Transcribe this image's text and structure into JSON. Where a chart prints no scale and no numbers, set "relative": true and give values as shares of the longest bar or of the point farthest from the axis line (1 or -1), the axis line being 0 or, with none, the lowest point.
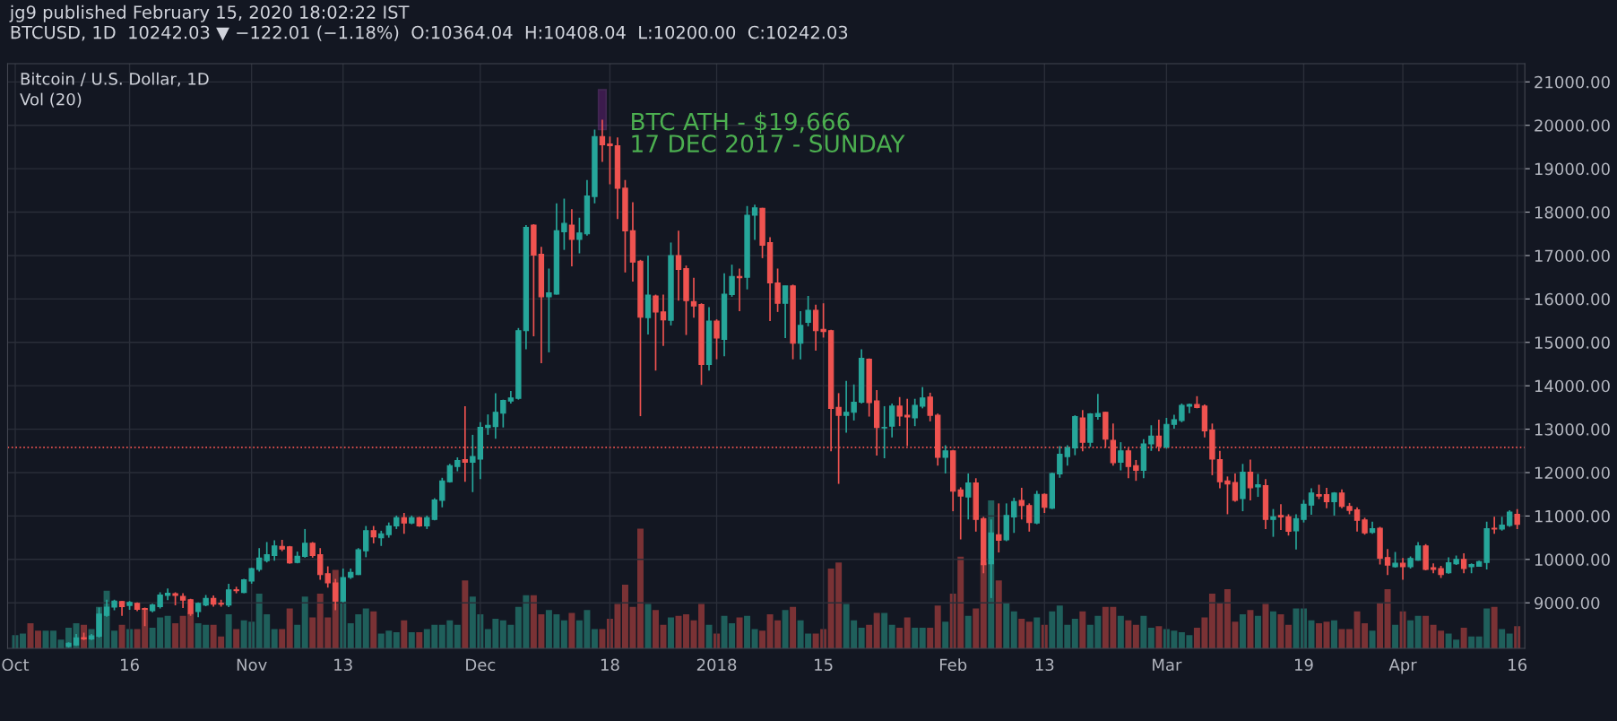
{
  "chart_data": [
    {
      "type": "candlestick",
      "title": "jg9 published February 15, 2020 18:02:22 IST",
      "subtitle": "BTCUSD, 1D  10242.03 ▼ −122.01 (−1.18%)  O:10364.04  H:10408.04  L:10200.00  C:10242.03",
      "annotations": [
        "Bitcoin / U.S. Dollar, 1D",
        "Vol (20)",
        {
          "text": "BTC ATH - $19,666\n17 DEC 2017 - SUNDAY",
          "x": "2017-12-17",
          "y": 20130
        }
      ],
      "x": [
        "2017-10-08",
        "2017-10-09",
        "2017-10-10",
        "2017-10-11",
        "2017-10-12",
        "2017-10-13",
        "2017-10-14",
        "2017-10-15",
        "2017-10-16",
        "2017-10-17",
        "2017-10-18",
        "2017-10-19",
        "2017-10-20",
        "2017-10-21",
        "2017-10-22",
        "2017-10-23",
        "2017-10-24",
        "2017-10-25",
        "2017-10-26",
        "2017-10-27",
        "2017-10-28",
        "2017-10-29",
        "2017-10-30",
        "2017-10-31",
        "2017-11-01",
        "2017-11-02",
        "2017-11-03",
        "2017-11-04",
        "2017-11-05",
        "2017-11-06",
        "2017-11-07",
        "2017-11-08",
        "2017-11-09",
        "2017-11-10",
        "2017-11-11",
        "2017-11-12",
        "2017-11-13",
        "2017-11-14",
        "2017-11-15",
        "2017-11-16",
        "2017-11-17",
        "2017-11-18",
        "2017-11-19",
        "2017-11-20",
        "2017-11-21",
        "2017-11-22",
        "2017-11-23",
        "2017-11-24",
        "2017-11-25",
        "2017-11-26",
        "2017-11-27",
        "2017-11-28",
        "2017-11-29",
        "2017-11-30",
        "2017-12-01",
        "2017-12-02",
        "2017-12-03",
        "2017-12-04",
        "2017-12-05",
        "2017-12-06",
        "2017-12-07",
        "2017-12-08",
        "2017-12-09",
        "2017-12-10",
        "2017-12-11",
        "2017-12-12",
        "2017-12-13",
        "2017-12-14",
        "2017-12-15",
        "2017-12-16",
        "2017-12-17",
        "2017-12-18",
        "2017-12-19",
        "2017-12-20",
        "2017-12-21",
        "2017-12-22",
        "2017-12-23",
        "2017-12-24",
        "2017-12-25",
        "2017-12-26",
        "2017-12-27",
        "2017-12-28",
        "2017-12-29",
        "2017-12-30",
        "2017-12-31",
        "2018-01-01",
        "2018-01-02",
        "2018-01-03",
        "2018-01-04",
        "2018-01-05",
        "2018-01-06",
        "2018-01-07",
        "2018-01-08",
        "2018-01-09",
        "2018-01-10",
        "2018-01-11",
        "2018-01-12",
        "2018-01-13",
        "2018-01-14",
        "2018-01-15",
        "2018-01-16",
        "2018-01-17",
        "2018-01-18",
        "2018-01-19",
        "2018-01-20",
        "2018-01-21",
        "2018-01-22",
        "2018-01-23",
        "2018-01-24",
        "2018-01-25",
        "2018-01-26",
        "2018-01-27",
        "2018-01-28",
        "2018-01-29",
        "2018-01-30",
        "2018-01-31",
        "2018-02-01",
        "2018-02-02",
        "2018-02-03",
        "2018-02-04",
        "2018-02-05",
        "2018-02-06",
        "2018-02-07",
        "2018-02-08",
        "2018-02-09",
        "2018-02-10",
        "2018-02-11",
        "2018-02-12",
        "2018-02-13",
        "2018-02-14",
        "2018-02-15",
        "2018-02-16",
        "2018-02-17",
        "2018-02-18",
        "2018-02-19",
        "2018-02-20",
        "2018-02-21",
        "2018-02-22",
        "2018-02-23",
        "2018-02-24",
        "2018-02-25",
        "2018-02-26",
        "2018-02-27",
        "2018-02-28",
        "2018-03-01",
        "2018-03-02",
        "2018-03-03",
        "2018-03-04",
        "2018-03-05",
        "2018-03-06",
        "2018-03-07",
        "2018-03-08",
        "2018-03-09",
        "2018-03-10",
        "2018-03-11",
        "2018-03-12",
        "2018-03-13",
        "2018-03-14",
        "2018-03-15",
        "2018-03-16",
        "2018-03-17",
        "2018-03-18",
        "2018-03-19",
        "2018-03-20",
        "2018-03-21",
        "2018-03-22",
        "2018-03-23",
        "2018-03-24",
        "2018-03-25",
        "2018-03-26",
        "2018-03-27",
        "2018-03-28",
        "2018-03-29",
        "2018-03-30",
        "2018-03-31",
        "2018-04-01",
        "2018-04-02",
        "2018-04-03",
        "2018-04-04",
        "2018-04-05",
        "2018-04-06",
        "2018-04-07",
        "2018-04-08",
        "2018-04-09",
        "2018-04-10",
        "2018-04-11",
        "2018-04-12",
        "2018-04-13",
        "2018-04-14",
        "2018-04-15",
        "2018-04-16"
      ],
      "ohlc": [
        [
          8000,
          8090,
          7970,
          8070
        ],
        [
          8030,
          8280,
          8010,
          8190
        ],
        [
          8200,
          8310,
          8140,
          8170
        ],
        [
          8170,
          8280,
          8140,
          8240
        ],
        [
          8230,
          8890,
          8200,
          8740
        ],
        [
          8710,
          9070,
          8680,
          8900
        ],
        [
          8900,
          9070,
          8830,
          9040
        ],
        [
          9030,
          9040,
          8700,
          8910
        ],
        [
          8940,
          9040,
          8840,
          9010
        ],
        [
          8990,
          9010,
          8810,
          8850
        ],
        [
          8870,
          8890,
          8460,
          8850
        ],
        [
          8820,
          8980,
          8780,
          8950
        ],
        [
          8910,
          9240,
          8870,
          9180
        ],
        [
          9170,
          9330,
          9060,
          9220
        ],
        [
          9210,
          9240,
          8940,
          9170
        ],
        [
          9150,
          9220,
          8880,
          9060
        ],
        [
          9070,
          9090,
          8700,
          8750
        ],
        [
          8800,
          9010,
          8670,
          8990
        ],
        [
          8950,
          9180,
          8920,
          9100
        ],
        [
          9100,
          9170,
          8910,
          8970
        ],
        [
          8990,
          9070,
          8910,
          8970
        ],
        [
          8950,
          9440,
          8900,
          9300
        ],
        [
          9300,
          9370,
          9220,
          9280
        ],
        [
          9240,
          9550,
          9220,
          9530
        ],
        [
          9500,
          9810,
          9440,
          9790
        ],
        [
          9770,
          10260,
          9720,
          10030
        ],
        [
          9970,
          10400,
          9930,
          10110
        ],
        [
          10090,
          10440,
          9970,
          10310
        ],
        [
          10300,
          10450,
          10190,
          10240
        ],
        [
          10290,
          10310,
          9900,
          9920
        ],
        [
          9930,
          10180,
          9910,
          10070
        ],
        [
          10070,
          10700,
          10040,
          10370
        ],
        [
          10370,
          10400,
          10040,
          10090
        ],
        [
          10110,
          10260,
          9530,
          9650
        ],
        [
          9670,
          9840,
          9350,
          9460
        ],
        [
          9460,
          9550,
          8830,
          9040
        ],
        [
          9040,
          9790,
          9010,
          9580
        ],
        [
          9590,
          9790,
          9550,
          9700
        ],
        [
          9650,
          10260,
          9640,
          10220
        ],
        [
          10200,
          10770,
          10050,
          10660
        ],
        [
          10660,
          10770,
          10370,
          10520
        ],
        [
          10500,
          10660,
          10310,
          10590
        ],
        [
          10570,
          10850,
          10500,
          10770
        ],
        [
          10770,
          11010,
          10700,
          10960
        ],
        [
          10960,
          11070,
          10590,
          10840
        ],
        [
          10840,
          11010,
          10810,
          10960
        ],
        [
          10960,
          10980,
          10750,
          10770
        ],
        [
          10770,
          11010,
          10700,
          10960
        ],
        [
          10920,
          11410,
          10900,
          11370
        ],
        [
          11360,
          11880,
          11200,
          11810
        ],
        [
          11790,
          12200,
          11770,
          12160
        ],
        [
          12140,
          12350,
          12030,
          12280
        ],
        [
          12300,
          13530,
          11790,
          12240
        ],
        [
          12240,
          12870,
          11550,
          12370
        ],
        [
          12310,
          13160,
          11850,
          13040
        ],
        [
          13040,
          13340,
          12870,
          13090
        ],
        [
          13060,
          13830,
          12780,
          13390
        ],
        [
          13370,
          13680,
          13040,
          13660
        ],
        [
          13650,
          13880,
          13590,
          13720
        ],
        [
          13710,
          15330,
          13680,
          15270
        ],
        [
          15270,
          17700,
          14840,
          17650
        ],
        [
          17700,
          17720,
          15140,
          17010
        ],
        [
          17030,
          17200,
          14520,
          16050
        ],
        [
          16050,
          16700,
          14770,
          16140
        ],
        [
          16110,
          18200,
          16100,
          17570
        ],
        [
          17550,
          18310,
          17130,
          17740
        ],
        [
          17700,
          18070,
          16750,
          17370
        ],
        [
          17370,
          17870,
          17050,
          17520
        ],
        [
          17500,
          18740,
          17460,
          18370
        ],
        [
          18360,
          19900,
          18200,
          19740
        ],
        [
          19740,
          20130,
          19160,
          19550
        ],
        [
          19570,
          19740,
          18640,
          19530
        ],
        [
          19530,
          19720,
          17840,
          18550
        ],
        [
          18550,
          18740,
          16610,
          17570
        ],
        [
          17570,
          18230,
          16400,
          16850
        ],
        [
          16870,
          16900,
          13300,
          15580
        ],
        [
          15570,
          17000,
          15180,
          16090
        ],
        [
          16070,
          16100,
          14350,
          15700
        ],
        [
          15700,
          16100,
          14920,
          15520
        ],
        [
          15510,
          17300,
          15390,
          17000
        ],
        [
          17000,
          17570,
          15960,
          16680
        ],
        [
          16700,
          16770,
          15170,
          15960
        ],
        [
          15940,
          16490,
          15570,
          15840
        ],
        [
          15870,
          15900,
          14020,
          14490
        ],
        [
          14490,
          15810,
          14350,
          15490
        ],
        [
          15490,
          15530,
          14610,
          15100
        ],
        [
          15070,
          16590,
          14680,
          16110
        ],
        [
          16100,
          16790,
          16050,
          16520
        ],
        [
          16520,
          16700,
          15720,
          16490
        ],
        [
          16500,
          18140,
          16220,
          17930
        ],
        [
          17930,
          18170,
          17360,
          18100
        ],
        [
          18090,
          18100,
          16940,
          17240
        ],
        [
          17300,
          17420,
          15490,
          16370
        ],
        [
          16370,
          16700,
          15700,
          15900
        ],
        [
          15900,
          16300,
          15100,
          16300
        ],
        [
          16300,
          16330,
          14610,
          14980
        ],
        [
          14980,
          15720,
          14610,
          15390
        ],
        [
          15460,
          16070,
          15370,
          15740
        ],
        [
          15740,
          15870,
          14810,
          15270
        ],
        [
          15300,
          15900,
          15110,
          15250
        ],
        [
          15270,
          15290,
          12490,
          13480
        ],
        [
          13500,
          13830,
          11740,
          13320
        ],
        [
          13320,
          14110,
          12920,
          13390
        ],
        [
          13390,
          14030,
          13200,
          13620
        ],
        [
          13620,
          14840,
          13590,
          14630
        ],
        [
          14610,
          14630,
          13290,
          13610
        ],
        [
          13650,
          13900,
          12390,
          13040
        ],
        [
          13030,
          13530,
          12330,
          13040
        ],
        [
          13070,
          13590,
          12810,
          13530
        ],
        [
          13530,
          13740,
          13070,
          13300
        ],
        [
          13320,
          13700,
          12610,
          13280
        ],
        [
          13260,
          13700,
          13070,
          13550
        ],
        [
          13530,
          13970,
          13480,
          13720
        ],
        [
          13740,
          13840,
          13180,
          13320
        ],
        [
          13320,
          13360,
          12160,
          12350
        ],
        [
          12350,
          12630,
          11980,
          12500
        ],
        [
          12500,
          12520,
          11110,
          11570
        ],
        [
          11600,
          11660,
          10460,
          11460
        ],
        [
          11440,
          11980,
          10920,
          11760
        ],
        [
          11760,
          11870,
          10640,
          10920
        ],
        [
          10940,
          10980,
          9680,
          9880
        ],
        [
          9900,
          10920,
          9110,
          10610
        ],
        [
          10570,
          11290,
          10160,
          10440
        ],
        [
          10450,
          11290,
          10420,
          11010
        ],
        [
          10980,
          11420,
          10610,
          11330
        ],
        [
          11360,
          11650,
          10920,
          11240
        ],
        [
          11240,
          11290,
          10640,
          10850
        ],
        [
          10840,
          11580,
          10810,
          11500
        ],
        [
          11500,
          11520,
          11070,
          11200
        ],
        [
          11180,
          12000,
          11160,
          11980
        ],
        [
          11970,
          12610,
          11880,
          12420
        ],
        [
          12370,
          12630,
          12160,
          12570
        ],
        [
          12570,
          13320,
          12400,
          13290
        ],
        [
          13260,
          13440,
          12490,
          12700
        ],
        [
          12700,
          13370,
          12590,
          13350
        ],
        [
          13290,
          13810,
          13220,
          13360
        ],
        [
          13390,
          13400,
          12570,
          12770
        ],
        [
          12740,
          13130,
          12160,
          12230
        ],
        [
          12240,
          12700,
          12050,
          12500
        ],
        [
          12500,
          12570,
          11870,
          12140
        ],
        [
          12160,
          12290,
          11810,
          12050
        ],
        [
          12050,
          12770,
          11870,
          12660
        ],
        [
          12660,
          13090,
          12500,
          12840
        ],
        [
          12840,
          13220,
          12490,
          12610
        ],
        [
          12590,
          13260,
          12550,
          13110
        ],
        [
          13110,
          13330,
          13010,
          13220
        ],
        [
          13200,
          13590,
          13160,
          13550
        ],
        [
          13530,
          13590,
          13370,
          13570
        ],
        [
          13570,
          13760,
          13480,
          13500
        ],
        [
          13530,
          13570,
          12810,
          12960
        ],
        [
          12980,
          13130,
          11940,
          12310
        ],
        [
          12300,
          12500,
          11640,
          11790
        ],
        [
          11810,
          11910,
          11040,
          11740
        ],
        [
          11770,
          11980,
          11330,
          11360
        ],
        [
          11400,
          12200,
          11110,
          12010
        ],
        [
          12010,
          12300,
          11360,
          11650
        ],
        [
          11670,
          11970,
          11440,
          11720
        ],
        [
          11700,
          11850,
          10700,
          10920
        ],
        [
          10920,
          11160,
          10520,
          10980
        ],
        [
          11010,
          11270,
          10680,
          10980
        ],
        [
          10980,
          11040,
          10550,
          10650
        ],
        [
          10660,
          11040,
          10230,
          10940
        ],
        [
          10920,
          11370,
          10850,
          11270
        ],
        [
          11250,
          11640,
          11030,
          11530
        ],
        [
          11490,
          11720,
          11390,
          11460
        ],
        [
          11490,
          11650,
          11180,
          11330
        ],
        [
          11330,
          11550,
          11010,
          11530
        ],
        [
          11530,
          11610,
          11180,
          11220
        ],
        [
          11220,
          11300,
          11040,
          11130
        ],
        [
          11140,
          11200,
          10640,
          10900
        ],
        [
          10910,
          10960,
          10570,
          10610
        ],
        [
          10620,
          10870,
          10590,
          10710
        ],
        [
          10720,
          10750,
          9880,
          10030
        ],
        [
          10040,
          10240,
          9640,
          9870
        ],
        [
          9830,
          10170,
          9810,
          9910
        ],
        [
          9910,
          10030,
          9530,
          9830
        ],
        [
          9830,
          10070,
          9790,
          10020
        ],
        [
          9980,
          10400,
          9970,
          10310
        ],
        [
          10310,
          10350,
          9750,
          9770
        ],
        [
          9810,
          9910,
          9680,
          9770
        ],
        [
          9790,
          9850,
          9570,
          9650
        ],
        [
          9690,
          10050,
          9670,
          9920
        ],
        [
          9900,
          10090,
          9870,
          10000
        ],
        [
          10000,
          10140,
          9680,
          9790
        ],
        [
          9830,
          9910,
          9680,
          9880
        ],
        [
          9840,
          9970,
          9830,
          9950
        ],
        [
          9930,
          10870,
          9770,
          10710
        ],
        [
          10720,
          10980,
          10590,
          10700
        ],
        [
          10700,
          10980,
          10660,
          10790
        ],
        [
          10780,
          11130,
          10750,
          11090
        ],
        [
          11040,
          11160,
          10700,
          10810
        ]
      ],
      "colors": [
        "#26a69a",
        "#26a69a",
        "#ef5350",
        "#26a69a",
        "#26a69a",
        "#26a69a",
        "#26a69a",
        "#ef5350",
        "#26a69a",
        "#ef5350",
        "#ef5350",
        "#26a69a",
        "#26a69a",
        "#26a69a",
        "#ef5350",
        "#ef5350",
        "#ef5350",
        "#26a69a",
        "#26a69a",
        "#ef5350",
        "#ef5350",
        "#26a69a",
        "#ef5350",
        "#26a69a",
        "#26a69a",
        "#26a69a",
        "#26a69a",
        "#26a69a",
        "#ef5350",
        "#ef5350",
        "#26a69a",
        "#26a69a",
        "#ef5350",
        "#ef5350",
        "#ef5350",
        "#ef5350",
        "#26a69a",
        "#26a69a",
        "#26a69a",
        "#26a69a",
        "#ef5350",
        "#26a69a",
        "#26a69a",
        "#26a69a",
        "#ef5350",
        "#26a69a",
        "#ef5350",
        "#26a69a",
        "#26a69a",
        "#26a69a",
        "#26a69a",
        "#26a69a",
        "#ef5350",
        "#26a69a",
        "#26a69a",
        "#26a69a",
        "#26a69a",
        "#26a69a",
        "#26a69a",
        "#26a69a",
        "#26a69a",
        "#ef5350",
        "#ef5350",
        "#26a69a",
        "#26a69a",
        "#26a69a",
        "#ef5350",
        "#26a69a",
        "#26a69a",
        "#26a69a",
        "#ef5350",
        "#ef5350",
        "#ef5350",
        "#ef5350",
        "#ef5350",
        "#ef5350",
        "#26a69a",
        "#ef5350",
        "#ef5350",
        "#26a69a",
        "#ef5350",
        "#ef5350",
        "#ef5350",
        "#ef5350",
        "#26a69a",
        "#ef5350",
        "#26a69a",
        "#26a69a",
        "#ef5350",
        "#26a69a",
        "#26a69a",
        "#ef5350",
        "#ef5350",
        "#ef5350",
        "#26a69a",
        "#ef5350",
        "#26a69a",
        "#26a69a",
        "#ef5350",
        "#ef5350",
        "#ef5350",
        "#ef5350",
        "#26a69a",
        "#26a69a",
        "#26a69a",
        "#ef5350",
        "#ef5350",
        "#26a69a",
        "#26a69a",
        "#ef5350",
        "#ef5350",
        "#26a69a",
        "#26a69a",
        "#ef5350",
        "#ef5350",
        "#26a69a",
        "#ef5350",
        "#ef5350",
        "#26a69a",
        "#ef5350",
        "#ef5350",
        "#26a69a",
        "#ef5350",
        "#26a69a",
        "#26a69a",
        "#ef5350",
        "#ef5350",
        "#26a69a",
        "#ef5350",
        "#26a69a",
        "#26a69a",
        "#26a69a",
        "#26a69a",
        "#ef5350",
        "#26a69a",
        "#26a69a",
        "#ef5350",
        "#ef5350",
        "#26a69a",
        "#ef5350",
        "#ef5350",
        "#26a69a",
        "#26a69a",
        "#ef5350",
        "#26a69a",
        "#26a69a",
        "#26a69a",
        "#26a69a",
        "#ef5350",
        "#ef5350",
        "#ef5350",
        "#ef5350",
        "#ef5350",
        "#ef5350",
        "#26a69a",
        "#ef5350",
        "#26a69a",
        "#ef5350",
        "#26a69a",
        "#ef5350",
        "#ef5350",
        "#26a69a",
        "#26a69a",
        "#26a69a",
        "#ef5350",
        "#ef5350",
        "#26a69a",
        "#ef5350",
        "#ef5350",
        "#ef5350",
        "#ef5350",
        "#26a69a",
        "#ef5350",
        "#ef5350",
        "#26a69a",
        "#ef5350",
        "#26a69a",
        "#26a69a",
        "#ef5350",
        "#ef5350",
        "#ef5350",
        "#26a69a",
        "#26a69a",
        "#ef5350",
        "#26a69a",
        "#26a69a",
        "#26a69a",
        "#ef5350",
        "#26a69a",
        "#26a69a",
        "#ef5350"
      ],
      "xlim": [
        "2017-09-30",
        "2018-04-17"
      ],
      "xticks": [
        {
          "value": "2017-10-01",
          "label": "Oct"
        },
        {
          "value": "2017-10-16",
          "label": "16"
        },
        {
          "value": "2017-11-01",
          "label": "Nov"
        },
        {
          "value": "2017-11-13",
          "label": "13"
        },
        {
          "value": "2017-12-01",
          "label": "Dec"
        },
        {
          "value": "2017-12-18",
          "label": "18"
        },
        {
          "value": "2018-01-01",
          "label": "2018"
        },
        {
          "value": "2018-01-15",
          "label": "15"
        },
        {
          "value": "2018-02-01",
          "label": "Feb"
        },
        {
          "value": "2018-02-13",
          "label": "13"
        },
        {
          "value": "2018-03-01",
          "label": "Mar"
        },
        {
          "value": "2018-03-19",
          "label": "19"
        },
        {
          "value": "2018-04-01",
          "label": "Apr"
        },
        {
          "value": "2018-04-16",
          "label": "16"
        }
      ],
      "ylim": [
        7950,
        21420
      ],
      "yticks": [
        {
          "value": 9000,
          "label": "9000.00"
        },
        {
          "value": 10000,
          "label": "10000.00"
        },
        {
          "value": 11000,
          "label": "11000.00"
        },
        {
          "value": 12000,
          "label": "12000.00"
        },
        {
          "value": 13000,
          "label": "13000.00"
        },
        {
          "value": 14000,
          "label": "14000.00"
        },
        {
          "value": 15000,
          "label": "15000.00"
        },
        {
          "value": 16000,
          "label": "16000.00"
        },
        {
          "value": 17000,
          "label": "17000.00"
        },
        {
          "value": 18000,
          "label": "18000.00"
        },
        {
          "value": 19000,
          "label": "19000.00"
        },
        {
          "value": 20000,
          "label": "20000.00"
        },
        {
          "value": 21000,
          "label": "21000.00"
        }
      ],
      "ref_lines": [
        {
          "axis": "y",
          "value": 12580,
          "color": "#ef5350",
          "line_style": "dotted"
        }
      ],
      "grid": true
    },
    {
      "type": "bar",
      "relative": true,
      "x": [
        "2017-10-01",
        "2017-10-02",
        "2017-10-03",
        "2017-10-04",
        "2017-10-05",
        "2017-10-06",
        "2017-10-07",
        "2017-10-08",
        "2017-10-09",
        "2017-10-10",
        "2017-10-11",
        "2017-10-12",
        "2017-10-13",
        "2017-10-14",
        "2017-10-15",
        "2017-10-16",
        "2017-10-17",
        "2017-10-18",
        "2017-10-19",
        "2017-10-20",
        "2017-10-21",
        "2017-10-22",
        "2017-10-23",
        "2017-10-24",
        "2017-10-25",
        "2017-10-26",
        "2017-10-27",
        "2017-10-28",
        "2017-10-29",
        "2017-10-30",
        "2017-10-31",
        "2017-11-01",
        "2017-11-02",
        "2017-11-03",
        "2017-11-04",
        "2017-11-05",
        "2017-11-06",
        "2017-11-07",
        "2017-11-08",
        "2017-11-09",
        "2017-11-10",
        "2017-11-11",
        "2017-11-12",
        "2017-11-13",
        "2017-11-14",
        "2017-11-15",
        "2017-11-16",
        "2017-11-17",
        "2017-11-18",
        "2017-11-19",
        "2017-11-20",
        "2017-11-21",
        "2017-11-22",
        "2017-11-23",
        "2017-11-24",
        "2017-11-25",
        "2017-11-26",
        "2017-11-27",
        "2017-11-28",
        "2017-11-29",
        "2017-11-30",
        "2017-12-01",
        "2017-12-02",
        "2017-12-03",
        "2017-12-04",
        "2017-12-05",
        "2017-12-06",
        "2017-12-07",
        "2017-12-08",
        "2017-12-09",
        "2017-12-10",
        "2017-12-11",
        "2017-12-12",
        "2017-12-13",
        "2017-12-14",
        "2017-12-15",
        "2017-12-16",
        "2017-12-17",
        "2017-12-18",
        "2017-12-19",
        "2017-12-20",
        "2017-12-21",
        "2017-12-22",
        "2017-12-23",
        "2017-12-24",
        "2017-12-25",
        "2017-12-26",
        "2017-12-27",
        "2017-12-28",
        "2017-12-29",
        "2017-12-30",
        "2017-12-31",
        "2018-01-01",
        "2018-01-02",
        "2018-01-03",
        "2018-01-04",
        "2018-01-05",
        "2018-01-06",
        "2018-01-07",
        "2018-01-08",
        "2018-01-09",
        "2018-01-10",
        "2018-01-11",
        "2018-01-12",
        "2018-01-13",
        "2018-01-14",
        "2018-01-15",
        "2018-01-16",
        "2018-01-17",
        "2018-01-18",
        "2018-01-19",
        "2018-01-20",
        "2018-01-21",
        "2018-01-22",
        "2018-01-23",
        "2018-01-24",
        "2018-01-25",
        "2018-01-26",
        "2018-01-27",
        "2018-01-28",
        "2018-01-29",
        "2018-01-30",
        "2018-01-31",
        "2018-02-01",
        "2018-02-02",
        "2018-02-03",
        "2018-02-04",
        "2018-02-05",
        "2018-02-06",
        "2018-02-07",
        "2018-02-08",
        "2018-02-09",
        "2018-02-10",
        "2018-02-11",
        "2018-02-12",
        "2018-02-13",
        "2018-02-14",
        "2018-02-15",
        "2018-02-16",
        "2018-02-17",
        "2018-02-18",
        "2018-02-19",
        "2018-02-20",
        "2018-02-21",
        "2018-02-22",
        "2018-02-23",
        "2018-02-24",
        "2018-02-25",
        "2018-02-26",
        "2018-02-27",
        "2018-02-28",
        "2018-03-01",
        "2018-03-02",
        "2018-03-03",
        "2018-03-04",
        "2018-03-05",
        "2018-03-06",
        "2018-03-07",
        "2018-03-08",
        "2018-03-09",
        "2018-03-10",
        "2018-03-11",
        "2018-03-12",
        "2018-03-13",
        "2018-03-14",
        "2018-03-15",
        "2018-03-16",
        "2018-03-17",
        "2018-03-18",
        "2018-03-19",
        "2018-03-20",
        "2018-03-21",
        "2018-03-22",
        "2018-03-23",
        "2018-03-24",
        "2018-03-25",
        "2018-03-26",
        "2018-03-27",
        "2018-03-28",
        "2018-03-29",
        "2018-03-30",
        "2018-03-31",
        "2018-04-01",
        "2018-04-02",
        "2018-04-03",
        "2018-04-04",
        "2018-04-05",
        "2018-04-06",
        "2018-04-07",
        "2018-04-08",
        "2018-04-09",
        "2018-04-10",
        "2018-04-11",
        "2018-04-12",
        "2018-04-13",
        "2018-04-14",
        "2018-04-15",
        "2018-04-16"
      ],
      "values": [
        0.09,
        0.1,
        0.17,
        0.12,
        0.12,
        0.12,
        0.06,
        0.14,
        0.17,
        0.16,
        0.13,
        0.28,
        0.39,
        0.12,
        0.16,
        0.13,
        0.13,
        0.27,
        0.14,
        0.21,
        0.22,
        0.17,
        0.22,
        0.24,
        0.17,
        0.16,
        0.16,
        0.08,
        0.23,
        0.13,
        0.19,
        0.18,
        0.37,
        0.23,
        0.13,
        0.13,
        0.27,
        0.16,
        0.35,
        0.21,
        0.37,
        0.21,
        0.53,
        0.32,
        0.17,
        0.23,
        0.27,
        0.25,
        0.1,
        0.12,
        0.11,
        0.19,
        0.11,
        0.11,
        0.13,
        0.16,
        0.16,
        0.19,
        0.16,
        0.46,
        0.35,
        0.23,
        0.13,
        0.2,
        0.19,
        0.16,
        0.28,
        0.36,
        0.36,
        0.23,
        0.26,
        0.23,
        0.19,
        0.24,
        0.19,
        0.26,
        0.13,
        0.13,
        0.2,
        0.3,
        0.43,
        0.28,
        0.81,
        0.3,
        0.26,
        0.16,
        0.21,
        0.22,
        0.23,
        0.19,
        0.3,
        0.16,
        0.1,
        0.22,
        0.17,
        0.21,
        0.22,
        0.13,
        0.12,
        0.23,
        0.19,
        0.26,
        0.28,
        0.19,
        0.1,
        0.1,
        0.13,
        0.54,
        0.58,
        0.3,
        0.19,
        0.14,
        0.16,
        0.24,
        0.24,
        0.16,
        0.14,
        0.21,
        0.14,
        0.14,
        0.14,
        0.29,
        0.18,
        0.37,
        0.62,
        0.22,
        0.27,
        0.58,
        1,
        0.46,
        0.31,
        0.25,
        0.2,
        0.18,
        0.21,
        0.16,
        0.25,
        0.29,
        0.16,
        0.2,
        0.25,
        0.16,
        0.22,
        0.28,
        0.28,
        0.22,
        0.19,
        0.16,
        0.22,
        0.14,
        0.15,
        0.13,
        0.12,
        0.11,
        0.09,
        0.14,
        0.21,
        0.37,
        0.31,
        0.4,
        0.18,
        0.23,
        0.26,
        0.22,
        0.3,
        0.25,
        0.23,
        0.16,
        0.27,
        0.27,
        0.19,
        0.17,
        0.18,
        0.19,
        0.13,
        0.13,
        0.25,
        0.17,
        0.12,
        0.31,
        0.4,
        0.16,
        0.25,
        0.19,
        0.22,
        0.22,
        0.16,
        0.12,
        0.1,
        0.06,
        0.14,
        0.08,
        0.08,
        0.27,
        0.28,
        0.13,
        0.1,
        0.15
      ],
      "colors": [
        "#1f5f5b",
        "#1f5f5b",
        "#7a3235",
        "#7a3235",
        "#1f5f5b",
        "#1f5f5b",
        "#1f5f5b",
        "#1f5f5b",
        "#1f5f5b",
        "#7a3235",
        "#1f5f5b",
        "#1f5f5b",
        "#1f5f5b",
        "#1f5f5b",
        "#7a3235",
        "#1f5f5b",
        "#7a3235",
        "#7a3235",
        "#1f5f5b",
        "#1f5f5b",
        "#1f5f5b",
        "#7a3235",
        "#7a3235",
        "#7a3235",
        "#1f5f5b",
        "#1f5f5b",
        "#7a3235",
        "#7a3235",
        "#1f5f5b",
        "#7a3235",
        "#1f5f5b",
        "#1f5f5b",
        "#1f5f5b",
        "#1f5f5b",
        "#1f5f5b",
        "#7a3235",
        "#7a3235",
        "#1f5f5b",
        "#1f5f5b",
        "#7a3235",
        "#7a3235",
        "#7a3235",
        "#7a3235",
        "#1f5f5b",
        "#1f5f5b",
        "#1f5f5b",
        "#1f5f5b",
        "#7a3235",
        "#1f5f5b",
        "#1f5f5b",
        "#1f5f5b",
        "#7a3235",
        "#1f5f5b",
        "#7a3235",
        "#1f5f5b",
        "#1f5f5b",
        "#1f5f5b",
        "#1f5f5b",
        "#1f5f5b",
        "#7a3235",
        "#1f5f5b",
        "#1f5f5b",
        "#1f5f5b",
        "#1f5f5b",
        "#1f5f5b",
        "#1f5f5b",
        "#1f5f5b",
        "#1f5f5b",
        "#7a3235",
        "#7a3235",
        "#1f5f5b",
        "#1f5f5b",
        "#1f5f5b",
        "#7a3235",
        "#1f5f5b",
        "#1f5f5b",
        "#1f5f5b",
        "#7a3235",
        "#7a3235",
        "#7a3235",
        "#7a3235",
        "#7a3235",
        "#7a3235",
        "#1f5f5b",
        "#7a3235",
        "#7a3235",
        "#1f5f5b",
        "#7a3235",
        "#7a3235",
        "#7a3235",
        "#7a3235",
        "#1f5f5b",
        "#7a3235",
        "#1f5f5b",
        "#1f5f5b",
        "#7a3235",
        "#1f5f5b",
        "#1f5f5b",
        "#7a3235",
        "#7a3235",
        "#7a3235",
        "#1f5f5b",
        "#7a3235",
        "#1f5f5b",
        "#1f5f5b",
        "#7a3235",
        "#7a3235",
        "#7a3235",
        "#7a3235",
        "#1f5f5b",
        "#1f5f5b",
        "#1f5f5b",
        "#7a3235",
        "#7a3235",
        "#1f5f5b",
        "#1f5f5b",
        "#7a3235",
        "#7a3235",
        "#1f5f5b",
        "#1f5f5b",
        "#7a3235",
        "#7a3235",
        "#1f5f5b",
        "#7a3235",
        "#7a3235",
        "#1f5f5b",
        "#7a3235",
        "#7a3235",
        "#1f5f5b",
        "#7a3235",
        "#1f5f5b",
        "#1f5f5b",
        "#7a3235",
        "#7a3235",
        "#1f5f5b",
        "#7a3235",
        "#1f5f5b",
        "#1f5f5b",
        "#1f5f5b",
        "#1f5f5b",
        "#7a3235",
        "#1f5f5b",
        "#1f5f5b",
        "#7a3235",
        "#7a3235",
        "#1f5f5b",
        "#7a3235",
        "#7a3235",
        "#1f5f5b",
        "#1f5f5b",
        "#7a3235",
        "#1f5f5b",
        "#1f5f5b",
        "#1f5f5b",
        "#1f5f5b",
        "#7a3235",
        "#7a3235",
        "#7a3235",
        "#7a3235",
        "#7a3235",
        "#7a3235",
        "#1f5f5b",
        "#7a3235",
        "#1f5f5b",
        "#7a3235",
        "#1f5f5b",
        "#7a3235",
        "#7a3235",
        "#1f5f5b",
        "#1f5f5b",
        "#1f5f5b",
        "#7a3235",
        "#7a3235",
        "#1f5f5b",
        "#7a3235",
        "#7a3235",
        "#7a3235",
        "#7a3235",
        "#1f5f5b",
        "#7a3235",
        "#7a3235",
        "#1f5f5b",
        "#7a3235",
        "#1f5f5b",
        "#1f5f5b",
        "#7a3235",
        "#7a3235",
        "#7a3235",
        "#1f5f5b",
        "#1f5f5b",
        "#7a3235",
        "#1f5f5b",
        "#1f5f5b",
        "#1f5f5b",
        "#7a3235",
        "#1f5f5b",
        "#1f5f5b",
        "#7a3235"
      ],
      "xlim": [
        "2017-09-30",
        "2018-04-17"
      ]
    }
  ]
}
